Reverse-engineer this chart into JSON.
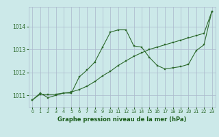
{
  "background_color": "#cce9e9",
  "grid_color": "#aab8cc",
  "line_color": "#2d6a2d",
  "marker_color": "#2d6a2d",
  "xlabel": "Graphe pression niveau de la mer (hPa)",
  "xlabel_color": "#1a5c1a",
  "ylim": [
    1010.5,
    1014.85
  ],
  "xlim": [
    -0.5,
    23.5
  ],
  "yticks": [
    1011,
    1012,
    1013,
    1014
  ],
  "xticks": [
    0,
    1,
    2,
    3,
    4,
    5,
    6,
    7,
    8,
    9,
    10,
    11,
    12,
    13,
    14,
    15,
    16,
    17,
    18,
    19,
    20,
    21,
    22,
    23
  ],
  "series1_x": [
    0,
    1,
    2,
    3,
    4,
    5,
    6,
    7,
    8,
    9,
    10,
    11,
    12,
    13,
    14,
    15,
    16,
    17,
    18,
    19,
    20,
    21,
    22,
    23
  ],
  "series1_y": [
    1010.8,
    1011.1,
    1010.9,
    1011.0,
    1011.1,
    1011.1,
    1011.8,
    1012.1,
    1012.45,
    1013.1,
    1013.75,
    1013.85,
    1013.85,
    1013.15,
    1013.1,
    1012.65,
    1012.3,
    1012.15,
    1012.2,
    1012.25,
    1012.35,
    1012.95,
    1013.2,
    1014.65
  ],
  "series2_x": [
    0,
    1,
    2,
    3,
    4,
    5,
    6,
    7,
    8,
    9,
    10,
    11,
    12,
    13,
    14,
    15,
    16,
    17,
    18,
    19,
    20,
    21,
    22,
    23
  ],
  "series2_y": [
    1010.8,
    1011.05,
    1011.05,
    1011.05,
    1011.1,
    1011.15,
    1011.25,
    1011.4,
    1011.6,
    1011.85,
    1012.05,
    1012.3,
    1012.5,
    1012.7,
    1012.85,
    1013.0,
    1013.1,
    1013.2,
    1013.3,
    1013.4,
    1013.5,
    1013.6,
    1013.7,
    1014.65
  ],
  "xlabel_fontsize": 6.0,
  "xtick_fontsize": 4.8,
  "ytick_fontsize": 5.5,
  "linewidth": 0.8,
  "markersize": 2.0
}
